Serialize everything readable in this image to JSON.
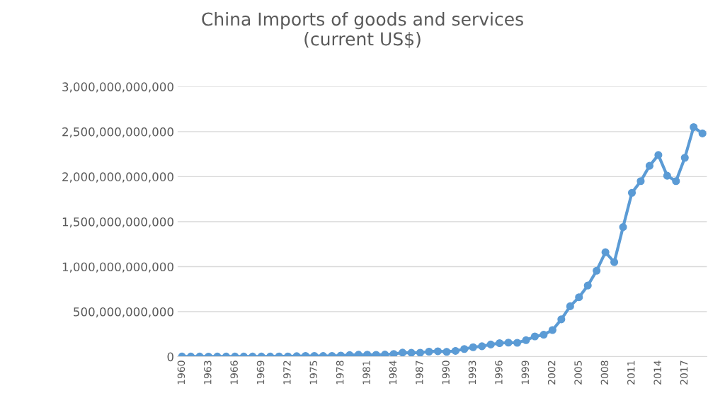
{
  "chart_data": {
    "type": "line",
    "title": "China Imports of goods and services\n(current US$)",
    "categories": [
      "1960",
      null,
      null,
      "1963",
      null,
      null,
      "1966",
      null,
      null,
      "1969",
      null,
      null,
      "1972",
      null,
      null,
      "1975",
      null,
      null,
      "1978",
      null,
      null,
      "1981",
      null,
      null,
      "1984",
      null,
      null,
      "1987",
      null,
      null,
      "1990",
      null,
      null,
      "1993",
      null,
      null,
      "1996",
      null,
      null,
      "1999",
      null,
      null,
      "2002",
      null,
      null,
      "2005",
      null,
      null,
      "2008",
      null,
      null,
      "2011",
      null,
      null,
      "2014",
      null,
      null,
      "2017",
      null,
      null
    ],
    "series": [
      {
        "color": "#5b9bd5",
        "values": [
          2000000000.0,
          2000000000.0,
          2000000000.0,
          1000000000.0,
          2000000000.0,
          2000000000.0,
          2000000000.0,
          2000000000.0,
          2000000000.0,
          2000000000.0,
          2000000000.0,
          3000000000.0,
          3000000000.0,
          5000000000.0,
          8000000000.0,
          8000000000.0,
          7000000000.0,
          8000000000.0,
          12000000000.0,
          17000000000.0,
          21000000000.0,
          22000000000.0,
          20000000000.0,
          23000000000.0,
          30000000000.0,
          45000000000.0,
          43000000000.0,
          44000000000.0,
          56000000000.0,
          60000000000.0,
          54000000000.0,
          64000000000.0,
          85000000000.0,
          105000000000.0,
          116000000000.0,
          135000000000.0,
          150000000000.0,
          156000000000.0,
          154000000000.0,
          183000000000.0,
          225000000000.0,
          244000000000.0,
          296000000000.0,
          415000000000.0,
          560000000000.0,
          660000000000.0,
          790000000000.0,
          955000000000.0,
          1160000000000.0,
          1050000000000.0,
          1440000000000.0,
          1820000000000.0,
          1950000000000.0,
          2120000000000.0,
          2240000000000.0,
          2010000000000.0,
          1950000000000.0,
          2210000000000.0,
          2550000000000.0,
          2480000000000.0
        ]
      }
    ],
    "ylim": [
      0,
      3000000000000.0
    ],
    "yticks": [
      {
        "value": 0,
        "label": "0"
      },
      {
        "value": 500000000000.0,
        "label": "500,000,000,000"
      },
      {
        "value": 1000000000000.0,
        "label": "1,000,000,000,000"
      },
      {
        "value": 1500000000000.0,
        "label": "1,500,000,000,000"
      },
      {
        "value": 2000000000000.0,
        "label": "2,000,000,000,000"
      },
      {
        "value": 2500000000000.0,
        "label": "2,500,000,000,000"
      },
      {
        "value": 3000000000000.0,
        "label": "3,000,000,000,000"
      }
    ],
    "grid": "y",
    "marker": "circle",
    "line_style": "solid"
  }
}
